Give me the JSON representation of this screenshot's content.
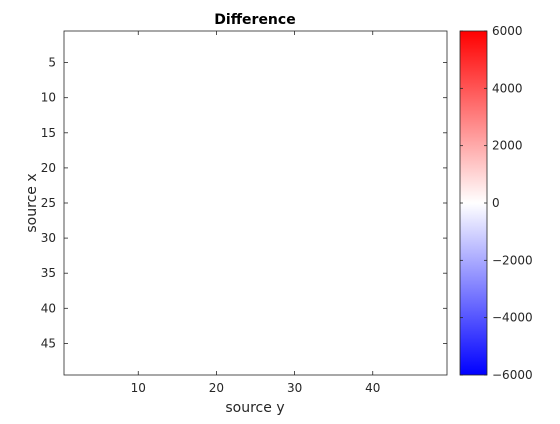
{
  "chart_data": {
    "type": "heatmap",
    "title": "Difference",
    "xlabel": "source y",
    "ylabel": "source x",
    "xlim": [
      0.5,
      49.5
    ],
    "ylim": [
      0.5,
      49.5
    ],
    "y_reversed": true,
    "xticks": [
      10,
      20,
      30,
      40
    ],
    "yticks": [
      5,
      10,
      15,
      20,
      25,
      30,
      35,
      40,
      45
    ],
    "grid": false,
    "values_description": "all cells at 0 (uniform white)",
    "fill_value": 0,
    "colorbar": {
      "min": -6000,
      "max": 6000,
      "ticks": [
        -6000,
        -4000,
        -2000,
        0,
        2000,
        4000,
        6000
      ],
      "tick_labels": [
        "−6000",
        "−4000",
        "−2000",
        "0",
        "2000",
        "4000",
        "6000"
      ],
      "colormap": [
        "#0000ff",
        "#ffffff",
        "#ff0000"
      ],
      "placement": "right"
    }
  }
}
